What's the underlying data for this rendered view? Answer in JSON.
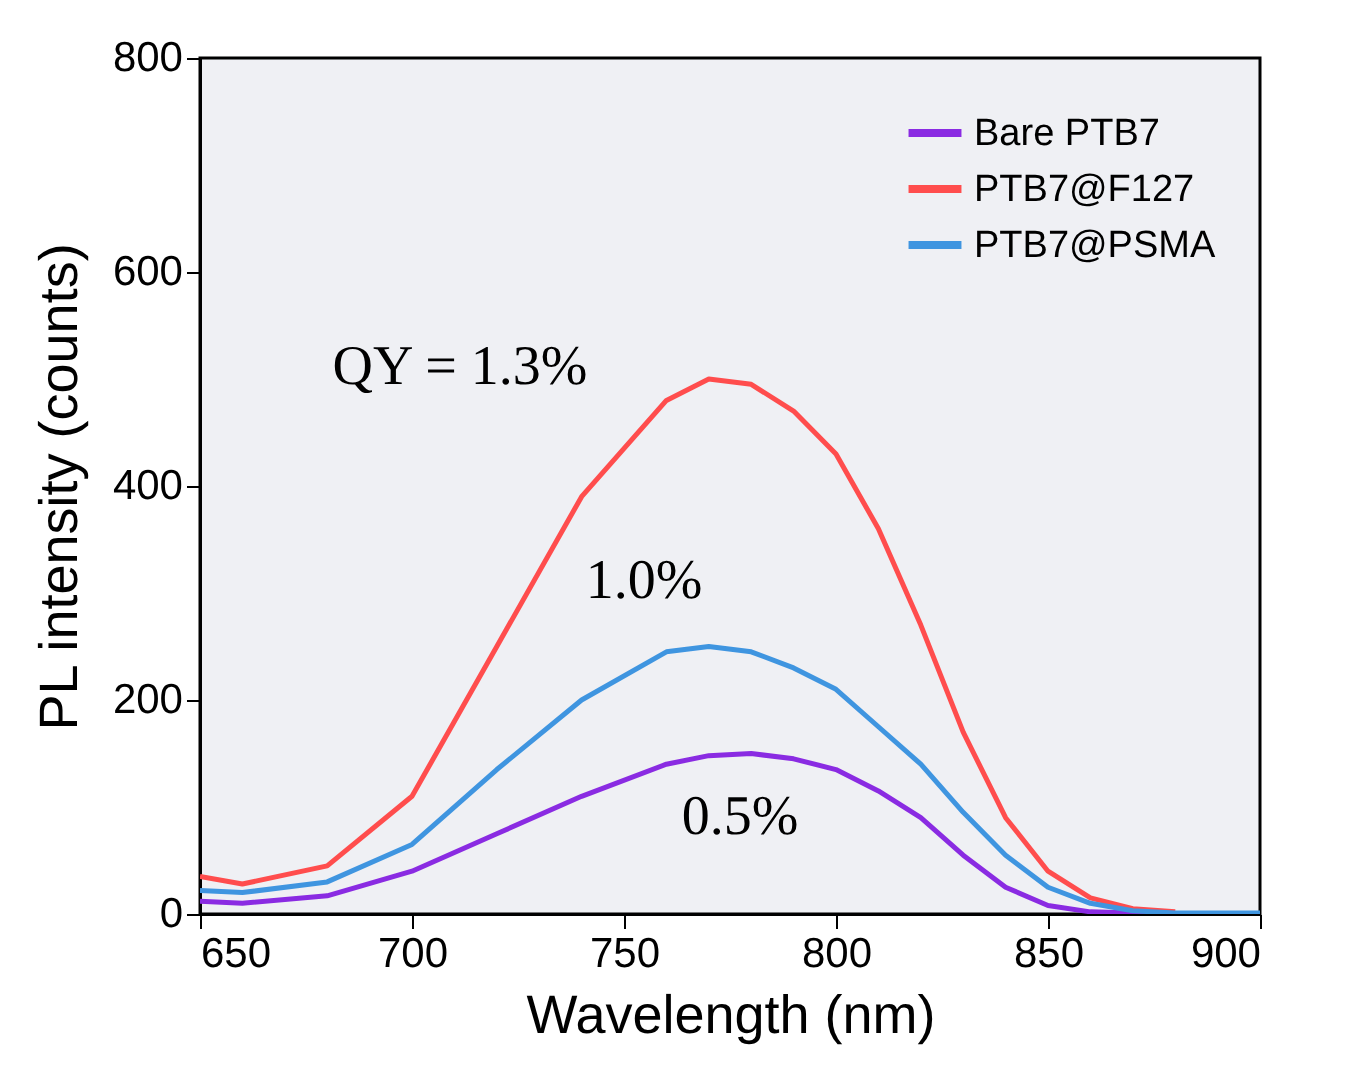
{
  "chart_data": {
    "type": "line",
    "xlabel": "Wavelength (nm)",
    "ylabel": "PL intensity (counts)",
    "x": [
      650,
      660,
      680,
      700,
      720,
      740,
      760,
      770,
      780,
      790,
      800,
      810,
      820,
      830,
      840,
      850,
      860,
      870,
      880,
      900
    ],
    "series": [
      {
        "name": "Bare PTB7",
        "color": "#8a2be2",
        "values": [
          12,
          10,
          17,
          40,
          75,
          110,
          140,
          148,
          150,
          145,
          135,
          115,
          90,
          55,
          25,
          8,
          2,
          1,
          0,
          0
        ]
      },
      {
        "name": "PTB7@F127",
        "color": "#ff4d4d",
        "values": [
          35,
          28,
          45,
          110,
          250,
          390,
          480,
          500,
          495,
          470,
          430,
          360,
          270,
          170,
          90,
          40,
          15,
          5,
          2,
          null
        ]
      },
      {
        "name": "PTB7@PSMA",
        "color": "#3f95e0",
        "values": [
          22,
          20,
          30,
          65,
          135,
          200,
          245,
          250,
          245,
          230,
          210,
          175,
          140,
          95,
          55,
          25,
          10,
          3,
          1,
          1
        ]
      }
    ],
    "xlim": [
      650,
      900
    ],
    "xticks": [
      650,
      700,
      750,
      800,
      850,
      900
    ],
    "ylim": [
      0,
      800
    ],
    "yticks": [
      0,
      200,
      400,
      600,
      800
    ],
    "legend": "top right",
    "grid": false,
    "annotations": [
      "QY = 1.3%",
      "1.0%",
      "0.5%"
    ]
  }
}
